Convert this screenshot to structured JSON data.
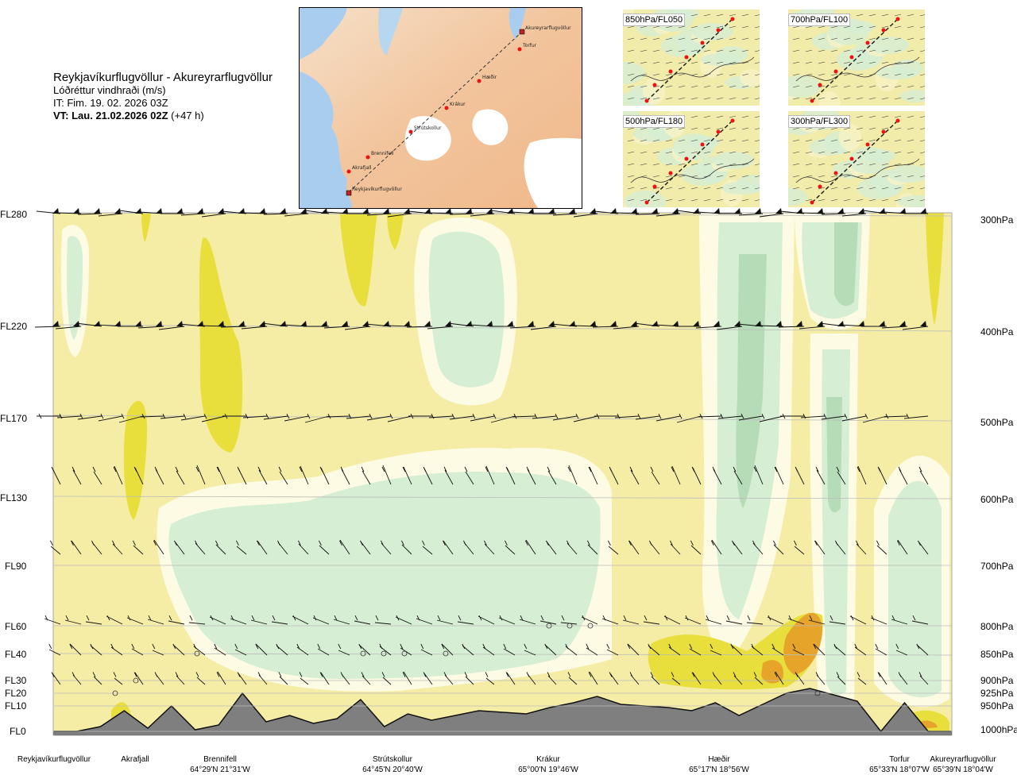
{
  "header": {
    "title": "Reykjavíkurflugvöllur - Akureyrarflugvöllur",
    "subtitle": "Lóðréttur vindhraði (m/s)",
    "issue_time": "IT: Fim. 19. 02. 2026 03Z",
    "valid_prefix": "VT: Lau. 21.02.2026 02Z",
    "valid_suffix": "(+47 h)"
  },
  "route_map": {
    "labels": [
      "Akureyrarflugvöllur",
      "Torfur",
      "Hæðir",
      "Krákur",
      "Strútskollur",
      "Brennifell",
      "Akrafjall",
      "Reykjavíkurflugvöllur"
    ]
  },
  "level_maps": [
    {
      "label": "850hPa/FL050"
    },
    {
      "label": "700hPa/FL100"
    },
    {
      "label": "500hPa/FL180"
    },
    {
      "label": "300hPa/FL300"
    }
  ],
  "flight_levels": [
    "FL280",
    "FL220",
    "FL170",
    "FL130",
    "FL90",
    "FL60",
    "FL40",
    "FL30",
    "FL20",
    "FL10",
    "FL0"
  ],
  "pressure_levels": [
    "300hPa",
    "400hPa",
    "500hPa",
    "600hPa",
    "700hPa",
    "800hPa",
    "850hPa",
    "900hPa",
    "925hPa",
    "950hPa",
    "1000hPa"
  ],
  "waypoints": [
    {
      "name": "Reykjavíkurflugvöllur",
      "coord": ""
    },
    {
      "name": "Akrafjall",
      "coord": ""
    },
    {
      "name": "Brennifell",
      "coord": "64°29'N 21°31'W"
    },
    {
      "name": "Strútskollur",
      "coord": "64°45'N 20°40'W"
    },
    {
      "name": "Krákur",
      "coord": "65°00'N 19°46'W"
    },
    {
      "name": "Hæðir",
      "coord": "65°17'N 18°56'W"
    },
    {
      "name": "Torfur",
      "coord": "65°33'N 18°07'W"
    },
    {
      "name": "Akureyrarflugvöllur",
      "coord": "65°39'N 18°04'W"
    }
  ],
  "colors": {
    "background": "#f5eda6",
    "updraft_strong": "#e8df3c",
    "updraft_very_strong": "#e6a52a",
    "neutral": "#fdfbe4",
    "downdraft_weak": "#d6eed3",
    "downdraft_moderate": "#b5dcb6",
    "downdraft_strong": "#94c79c",
    "terrain": "#7f7f7f"
  },
  "chart_data": {
    "type": "heatmap",
    "title": "Lóðréttur vindhraði (m/s)",
    "x_waypoints": [
      "Reykjavíkurflugvöllur",
      "Akrafjall",
      "Brennifell",
      "Strútskollur",
      "Krákur",
      "Hæðir",
      "Torfur",
      "Akureyrarflugvöllur"
    ],
    "y_levels": [
      "FL0",
      "FL10",
      "FL20",
      "FL30",
      "FL40",
      "FL60",
      "FL90",
      "FL130",
      "FL170",
      "FL220",
      "FL280"
    ],
    "y_pressure": [
      "1000hPa",
      "950hPa",
      "925hPa",
      "900hPa",
      "850hPa",
      "800hPa",
      "700hPa",
      "600hPa",
      "500hPa",
      "400hPa",
      "300hPa"
    ],
    "terrain_profile_ft": [
      0,
      0,
      300,
      1300,
      200,
      1600,
      100,
      400,
      2400,
      600,
      1000,
      500,
      800,
      2000,
      300,
      1100,
      700,
      1000,
      1300,
      1200,
      1100,
      1500,
      1800,
      2200,
      1700,
      1600,
      1500,
      1300,
      1800,
      1000,
      1700,
      2400,
      2700,
      2300,
      1900,
      0,
      1800,
      0,
      0
    ]
  }
}
